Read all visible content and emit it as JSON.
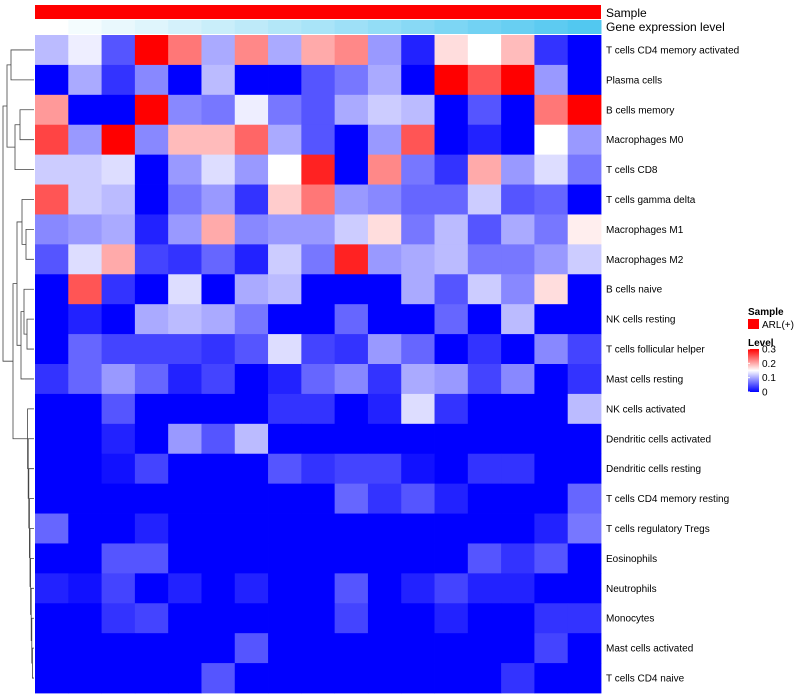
{
  "chart_data": {
    "type": "heatmap",
    "title": "",
    "annotation_tracks": [
      {
        "label": "Sample",
        "color": "#ff0000"
      },
      {
        "label": "Gene expression level",
        "colors_start": "#ffffff",
        "colors_end": "#52c8f0"
      }
    ],
    "rows": [
      "T cells CD4 memory activated",
      "Plasma cells",
      "B cells memory",
      "Macrophages M0",
      "T cells CD8",
      "T cells gamma delta",
      "Macrophages M1",
      "Macrophages M2",
      "B cells naive",
      "NK cells resting",
      "T cells follicular helper",
      "Mast cells resting",
      "NK cells activated",
      "Dendritic cells activated",
      "Dendritic cells resting",
      "T cells CD4 memory resting",
      "T cells regulatory  Tregs",
      "Eosinophils",
      "Neutrophils",
      "Monocytes",
      "Mast cells activated",
      "T cells CD4 naive"
    ],
    "n_columns": 17,
    "values": [
      [
        0.11,
        0.14,
        0.05,
        0.3,
        0.23,
        0.1,
        0.22,
        0.1,
        0.2,
        0.22,
        0.09,
        0.02,
        0.17,
        0.15,
        0.19,
        0.03,
        0.0
      ],
      [
        0.0,
        0.1,
        0.03,
        0.08,
        0.0,
        0.11,
        0.0,
        0.0,
        0.05,
        0.07,
        0.1,
        0.0,
        0.3,
        0.25,
        0.3,
        0.09,
        0.0
      ],
      [
        0.21,
        0.0,
        0.0,
        0.3,
        0.08,
        0.07,
        0.14,
        0.07,
        0.05,
        0.1,
        0.12,
        0.11,
        0.0,
        0.05,
        0.0,
        0.23,
        0.3
      ],
      [
        0.26,
        0.09,
        0.3,
        0.08,
        0.19,
        0.19,
        0.24,
        0.1,
        0.05,
        0.0,
        0.09,
        0.25,
        0.0,
        0.02,
        0.0,
        0.15,
        0.09
      ],
      [
        0.12,
        0.12,
        0.13,
        0.0,
        0.09,
        0.13,
        0.09,
        0.15,
        0.28,
        0.0,
        0.22,
        0.07,
        0.03,
        0.2,
        0.09,
        0.13,
        0.07
      ],
      [
        0.25,
        0.12,
        0.11,
        0.0,
        0.07,
        0.09,
        0.03,
        0.18,
        0.23,
        0.09,
        0.08,
        0.06,
        0.06,
        0.12,
        0.05,
        0.06,
        0.0
      ],
      [
        0.08,
        0.09,
        0.1,
        0.02,
        0.09,
        0.2,
        0.08,
        0.09,
        0.09,
        0.12,
        0.17,
        0.07,
        0.11,
        0.05,
        0.1,
        0.07,
        0.16
      ],
      [
        0.05,
        0.13,
        0.2,
        0.04,
        0.03,
        0.06,
        0.02,
        0.12,
        0.07,
        0.28,
        0.09,
        0.1,
        0.11,
        0.07,
        0.07,
        0.09,
        0.12
      ],
      [
        0.0,
        0.25,
        0.03,
        0.0,
        0.13,
        0.0,
        0.1,
        0.11,
        0.0,
        0.0,
        0.0,
        0.1,
        0.05,
        0.12,
        0.08,
        0.17,
        0.0
      ],
      [
        0.0,
        0.02,
        0.0,
        0.1,
        0.11,
        0.1,
        0.07,
        0.0,
        0.0,
        0.06,
        0.0,
        0.0,
        0.06,
        0.0,
        0.11,
        0.0,
        0.0
      ],
      [
        0.0,
        0.06,
        0.04,
        0.04,
        0.04,
        0.03,
        0.05,
        0.13,
        0.04,
        0.03,
        0.09,
        0.06,
        0.0,
        0.03,
        0.0,
        0.08,
        0.04
      ],
      [
        0.03,
        0.06,
        0.09,
        0.06,
        0.02,
        0.04,
        0.0,
        0.02,
        0.06,
        0.08,
        0.03,
        0.1,
        0.09,
        0.04,
        0.08,
        0.0,
        0.03
      ],
      [
        0.0,
        0.0,
        0.05,
        0.0,
        0.0,
        0.0,
        0.0,
        0.03,
        0.03,
        0.0,
        0.02,
        0.13,
        0.03,
        0.0,
        0.0,
        0.0,
        0.11
      ],
      [
        0.0,
        0.0,
        0.02,
        0.0,
        0.09,
        0.05,
        0.11,
        0.0,
        0.0,
        0.0,
        0.0,
        0.0,
        0.0,
        0.0,
        0.0,
        0.0,
        0.0
      ],
      [
        0.0,
        0.0,
        0.01,
        0.04,
        0.0,
        0.0,
        0.0,
        0.05,
        0.03,
        0.04,
        0.04,
        0.01,
        0.0,
        0.03,
        0.03,
        0.0,
        0.0
      ],
      [
        0.0,
        0.0,
        0.0,
        0.0,
        0.0,
        0.0,
        0.0,
        0.0,
        0.0,
        0.06,
        0.03,
        0.05,
        0.02,
        0.0,
        0.0,
        0.0,
        0.06
      ],
      [
        0.06,
        0.0,
        0.0,
        0.02,
        0.0,
        0.0,
        0.0,
        0.0,
        0.0,
        0.0,
        0.0,
        0.0,
        0.0,
        0.0,
        0.0,
        0.02,
        0.07
      ],
      [
        0.0,
        0.0,
        0.05,
        0.05,
        0.0,
        0.0,
        0.0,
        0.0,
        0.0,
        0.0,
        0.0,
        0.0,
        0.0,
        0.05,
        0.03,
        0.05,
        0.0
      ],
      [
        0.02,
        0.01,
        0.04,
        0.0,
        0.02,
        0.0,
        0.02,
        0.0,
        0.0,
        0.05,
        0.0,
        0.02,
        0.04,
        0.02,
        0.02,
        0.0,
        0.0
      ],
      [
        0.0,
        0.0,
        0.03,
        0.04,
        0.0,
        0.0,
        0.0,
        0.0,
        0.0,
        0.04,
        0.0,
        0.0,
        0.02,
        0.0,
        0.0,
        0.03,
        0.03
      ],
      [
        0.0,
        0.0,
        0.0,
        0.0,
        0.0,
        0.0,
        0.05,
        0.0,
        0.0,
        0.0,
        0.0,
        0.0,
        0.0,
        0.0,
        0.0,
        0.04,
        0.0
      ],
      [
        0.0,
        0.0,
        0.0,
        0.0,
        0.0,
        0.05,
        0.0,
        0.0,
        0.0,
        0.0,
        0.0,
        0.0,
        0.0,
        0.0,
        0.03,
        0.0,
        0.0
      ]
    ],
    "color_scale": {
      "min": 0,
      "mid": 0.15,
      "max": 0.3,
      "low_color": "#0000ff",
      "mid_color": "#ffffff",
      "high_color": "#ff0000"
    },
    "legend": {
      "sample_title": "Sample",
      "sample_entry": "ARL(+)",
      "sample_color": "#ff0000",
      "level_title": "Level",
      "level_ticks": [
        "0.3",
        "0.2",
        "0.1",
        "0"
      ],
      "level_tick_values": [
        0.3,
        0.2,
        0.1,
        0
      ]
    },
    "dendrogram": "row clustering (left)"
  }
}
